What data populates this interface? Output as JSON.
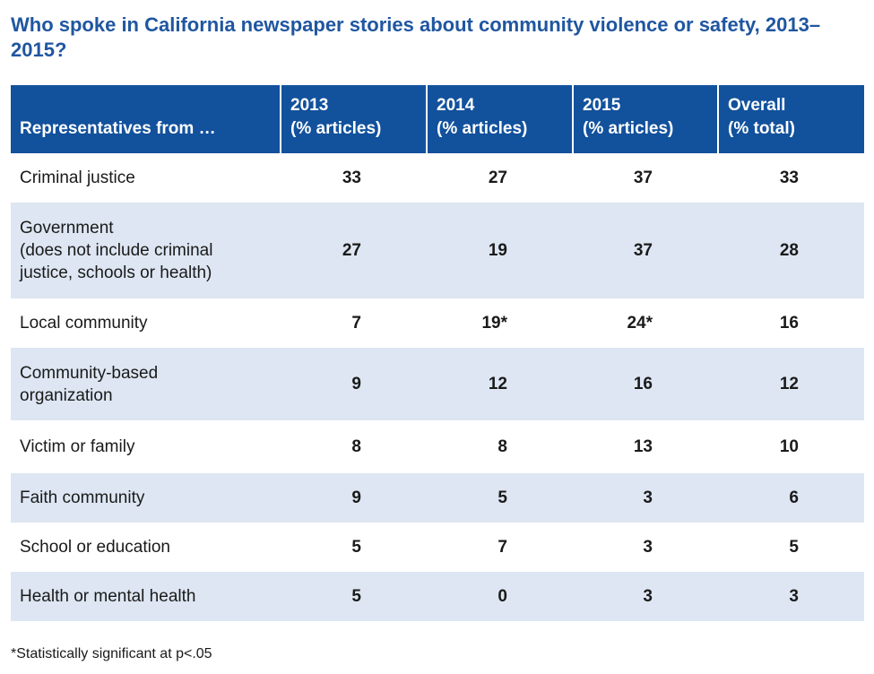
{
  "title": "Who spoke in California newspaper stories about community violence or safety, 2013–2015?",
  "chart_data": {
    "type": "table",
    "title": "Who spoke in California newspaper stories about community violence or safety, 2013–2015?",
    "columns": [
      {
        "line1": "Representatives from …",
        "line2": ""
      },
      {
        "line1": "2013",
        "line2": "(% articles)"
      },
      {
        "line1": "2014",
        "line2": "(% articles)"
      },
      {
        "line1": "2015",
        "line2": "(% articles)"
      },
      {
        "line1": "Overall",
        "line2": "(% total)"
      }
    ],
    "rows": [
      {
        "label": "Criminal justice",
        "values": [
          "33",
          "27",
          "37",
          "33"
        ]
      },
      {
        "label": "Government\n(does not include criminal\njustice, schools or health)",
        "values": [
          "27",
          "19",
          "37",
          "28"
        ]
      },
      {
        "label": "Local community",
        "values": [
          "7",
          "19*",
          "24*",
          "16"
        ]
      },
      {
        "label": "Community-based\norganization",
        "values": [
          "9",
          "12",
          "16",
          "12"
        ]
      },
      {
        "label": "Victim or family",
        "values": [
          "8",
          "8",
          "13",
          "10"
        ]
      },
      {
        "label": "Faith community",
        "values": [
          "9",
          "5",
          "3",
          "6"
        ]
      },
      {
        "label": "School or education",
        "values": [
          "5",
          "7",
          "3",
          "5"
        ]
      },
      {
        "label": "Health or mental health",
        "values": [
          "5",
          "0",
          "3",
          "3"
        ]
      }
    ],
    "footnote": "*Statistically significant at p<.05"
  },
  "colors": {
    "header_bg": "#12519c",
    "title": "#1f56a0",
    "band": "#dde6f2"
  }
}
